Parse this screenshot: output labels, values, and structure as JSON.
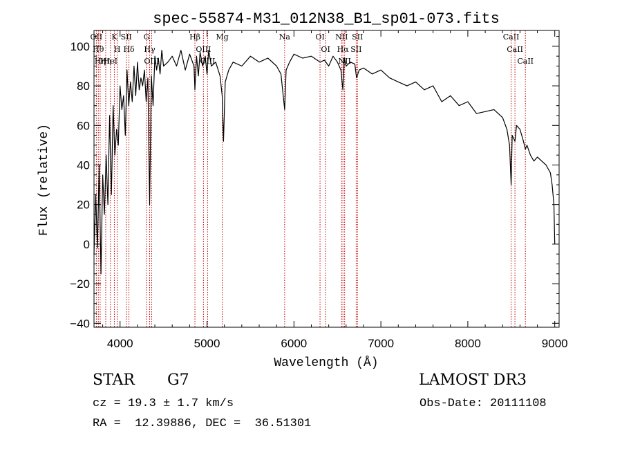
{
  "chart_data": {
    "type": "line",
    "title": "spec-55874-M31_012N38_B1_sp01-073.fits",
    "xlabel": "Wavelength (Å)",
    "ylabel": "Flux (relative)",
    "xlim": [
      3700,
      9050
    ],
    "ylim": [
      -42,
      108
    ],
    "xticks": [
      4000,
      5000,
      6000,
      7000,
      8000,
      9000
    ],
    "yticks": [
      -40,
      -20,
      0,
      20,
      40,
      60,
      80,
      100
    ],
    "series": [
      {
        "name": "flux",
        "x": [
          3700,
          3720,
          3740,
          3760,
          3780,
          3800,
          3820,
          3840,
          3860,
          3880,
          3900,
          3920,
          3940,
          3960,
          3980,
          4000,
          4020,
          4040,
          4060,
          4080,
          4100,
          4120,
          4140,
          4160,
          4180,
          4200,
          4220,
          4240,
          4260,
          4280,
          4300,
          4320,
          4340,
          4360,
          4380,
          4400,
          4420,
          4440,
          4460,
          4480,
          4500,
          4550,
          4600,
          4650,
          4700,
          4750,
          4800,
          4850,
          4861,
          4880,
          4900,
          4920,
          4950,
          4980,
          5000,
          5020,
          5050,
          5100,
          5150,
          5175,
          5190,
          5210,
          5250,
          5300,
          5400,
          5500,
          5600,
          5700,
          5800,
          5850,
          5893,
          5910,
          5950,
          6000,
          6100,
          6200,
          6300,
          6350,
          6400,
          6450,
          6500,
          6540,
          6563,
          6580,
          6600,
          6650,
          6700,
          6720,
          6750,
          6800,
          6900,
          7000,
          7100,
          7200,
          7300,
          7400,
          7500,
          7600,
          7700,
          7800,
          7900,
          8000,
          8100,
          8200,
          8300,
          8400,
          8450,
          8480,
          8498,
          8510,
          8542,
          8560,
          8600,
          8640,
          8662,
          8680,
          8720,
          8760,
          8800,
          8850,
          8900,
          8950,
          8970,
          8990,
          9000
        ],
        "values": [
          -5,
          25,
          -2,
          40,
          -15,
          35,
          15,
          45,
          20,
          65,
          25,
          70,
          45,
          58,
          50,
          80,
          68,
          75,
          55,
          88,
          70,
          82,
          72,
          90,
          75,
          92,
          78,
          84,
          80,
          88,
          72,
          84,
          20,
          85,
          70,
          95,
          88,
          94,
          86,
          98,
          90,
          92,
          95,
          90,
          98,
          88,
          96,
          90,
          78,
          95,
          85,
          97,
          90,
          95,
          86,
          98,
          90,
          92,
          85,
          75,
          52,
          82,
          88,
          92,
          90,
          95,
          92,
          94,
          90,
          86,
          68,
          88,
          92,
          96,
          94,
          95,
          92,
          93,
          90,
          95,
          92,
          88,
          78,
          94,
          90,
          92,
          91,
          84,
          88,
          89,
          86,
          88,
          84,
          82,
          80,
          82,
          78,
          80,
          72,
          75,
          70,
          72,
          66,
          67,
          68,
          64,
          58,
          50,
          30,
          55,
          52,
          60,
          58,
          52,
          48,
          50,
          45,
          42,
          44,
          42,
          40,
          36,
          30,
          20,
          0
        ]
      }
    ],
    "lines": [
      {
        "wl": 3727,
        "label": "OII"
      },
      {
        "wl": 3750,
        "label": "Hθ"
      },
      {
        "wl": 3771,
        "label": "Hη"
      },
      {
        "wl": 3835,
        "label": "Hη"
      },
      {
        "wl": 3889,
        "label": "HeI"
      },
      {
        "wl": 3934,
        "label": "K"
      },
      {
        "wl": 3968,
        "label": "H"
      },
      {
        "wl": 4072,
        "label": "SII"
      },
      {
        "wl": 4102,
        "label": "Hδ"
      },
      {
        "wl": 4304,
        "label": "G"
      },
      {
        "wl": 4340,
        "label": "Hγ"
      },
      {
        "wl": 4363,
        "label": "OIII"
      },
      {
        "wl": 4861,
        "label": "Hβ"
      },
      {
        "wl": 4959,
        "label": "OIII"
      },
      {
        "wl": 5007,
        "label": "OIII"
      },
      {
        "wl": 5175,
        "label": "Mg"
      },
      {
        "wl": 5893,
        "label": "Na"
      },
      {
        "wl": 6300,
        "label": "OI"
      },
      {
        "wl": 6364,
        "label": "OI"
      },
      {
        "wl": 6548,
        "label": "NII"
      },
      {
        "wl": 6563,
        "label": "Hα"
      },
      {
        "wl": 6583,
        "label": "NII"
      },
      {
        "wl": 6716,
        "label": "SII"
      },
      {
        "wl": 6731,
        "label": "SII"
      },
      {
        "wl": 8498,
        "label": "CaII"
      },
      {
        "wl": 8542,
        "label": "CaII"
      },
      {
        "wl": 8662,
        "label": "CaII"
      }
    ]
  },
  "info": {
    "class": "STAR",
    "subclass": "G7",
    "survey": "LAMOST DR3",
    "redshift": "cz = 19.3 ± 1.7 km/s",
    "obs_date": "Obs-Date: 20111108",
    "coords": "RA =  12.39886, DEC =  36.51301"
  },
  "colors": {
    "axis": "#000000",
    "line": "#000000",
    "marker": "#c00000"
  }
}
